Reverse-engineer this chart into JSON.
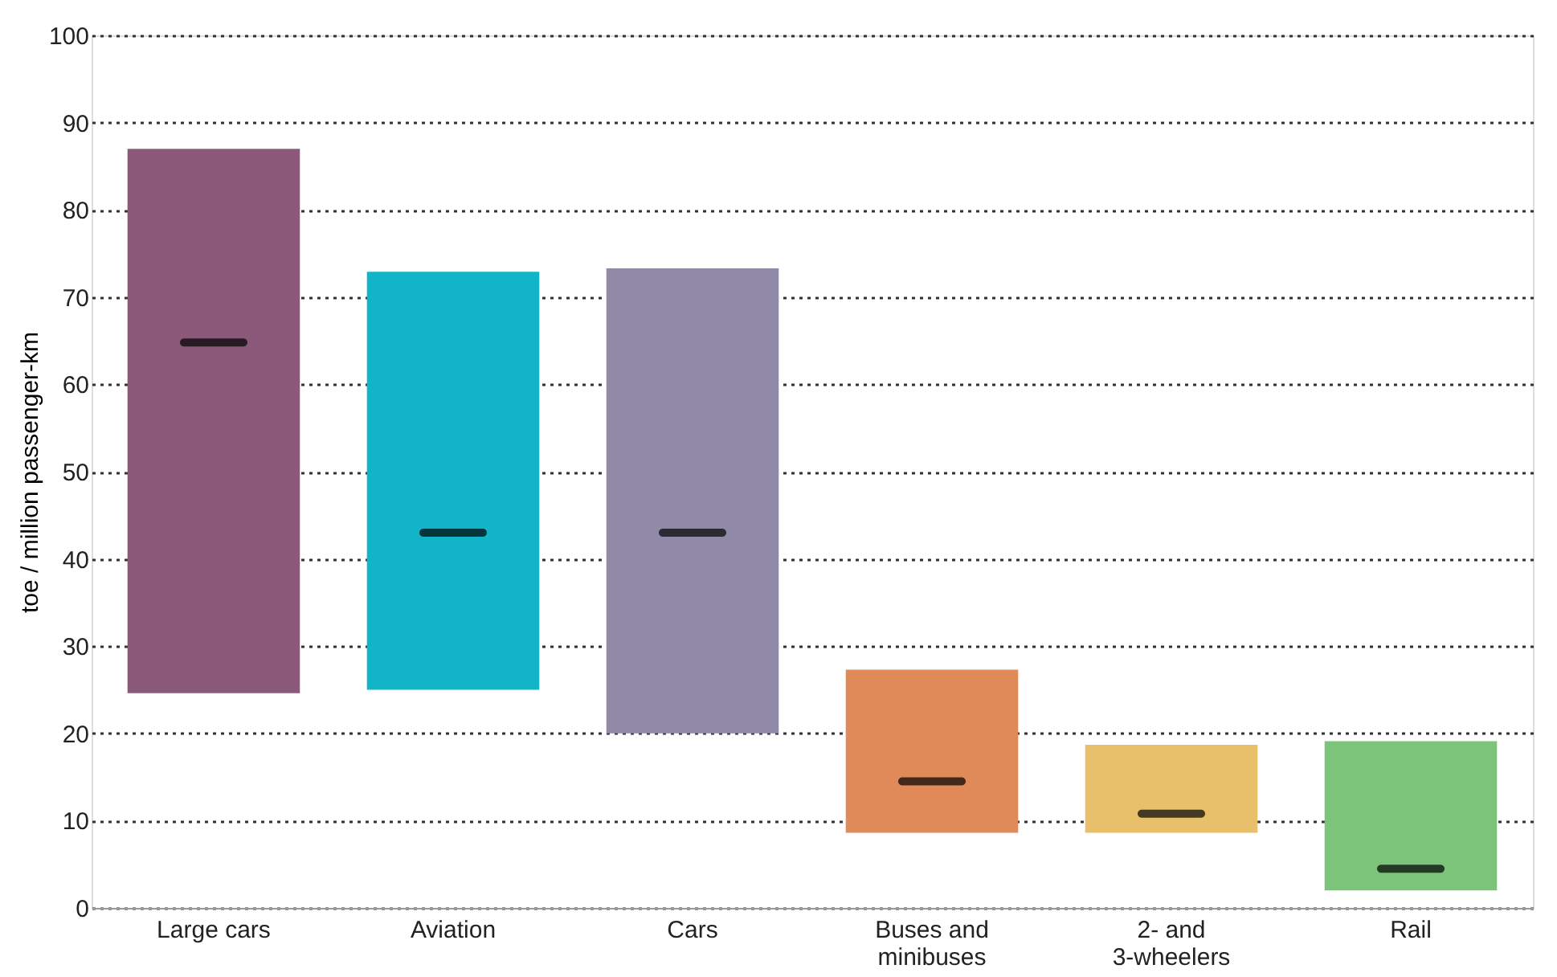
{
  "chart_data": {
    "type": "box",
    "ylabel": "toe / million passenger-km",
    "categories": [
      "Large cars",
      "Aviation",
      "Cars",
      "Buses and minibuses",
      "2- and 3-wheelers",
      "Rail"
    ],
    "colors": [
      "#8b5a7a",
      "#12b5c8",
      "#9089a8",
      "#e08a5a",
      "#e8bf6a",
      "#7cc47a"
    ],
    "boxes": [
      {
        "low": 24.6,
        "q1": 24.6,
        "median": 64.8,
        "q3": 87.0,
        "high": 87.0
      },
      {
        "low": 25.0,
        "q1": 25.0,
        "median": 43.0,
        "q3": 72.9,
        "high": 72.9
      },
      {
        "low": 20.0,
        "q1": 20.0,
        "median": 43.0,
        "q3": 73.3,
        "high": 73.3
      },
      {
        "low": 8.6,
        "q1": 8.6,
        "median": 14.5,
        "q3": 27.3,
        "high": 27.3
      },
      {
        "low": 8.6,
        "q1": 8.6,
        "median": 10.8,
        "q3": 18.7,
        "high": 18.7
      },
      {
        "low": 2.0,
        "q1": 2.0,
        "median": 4.5,
        "q3": 19.1,
        "high": 19.1
      }
    ],
    "ylim": [
      0,
      100
    ],
    "yticks": [
      0,
      10,
      20,
      30,
      40,
      50,
      60,
      70,
      80,
      90,
      100
    ],
    "grid": "y",
    "line_style": "dotted"
  }
}
